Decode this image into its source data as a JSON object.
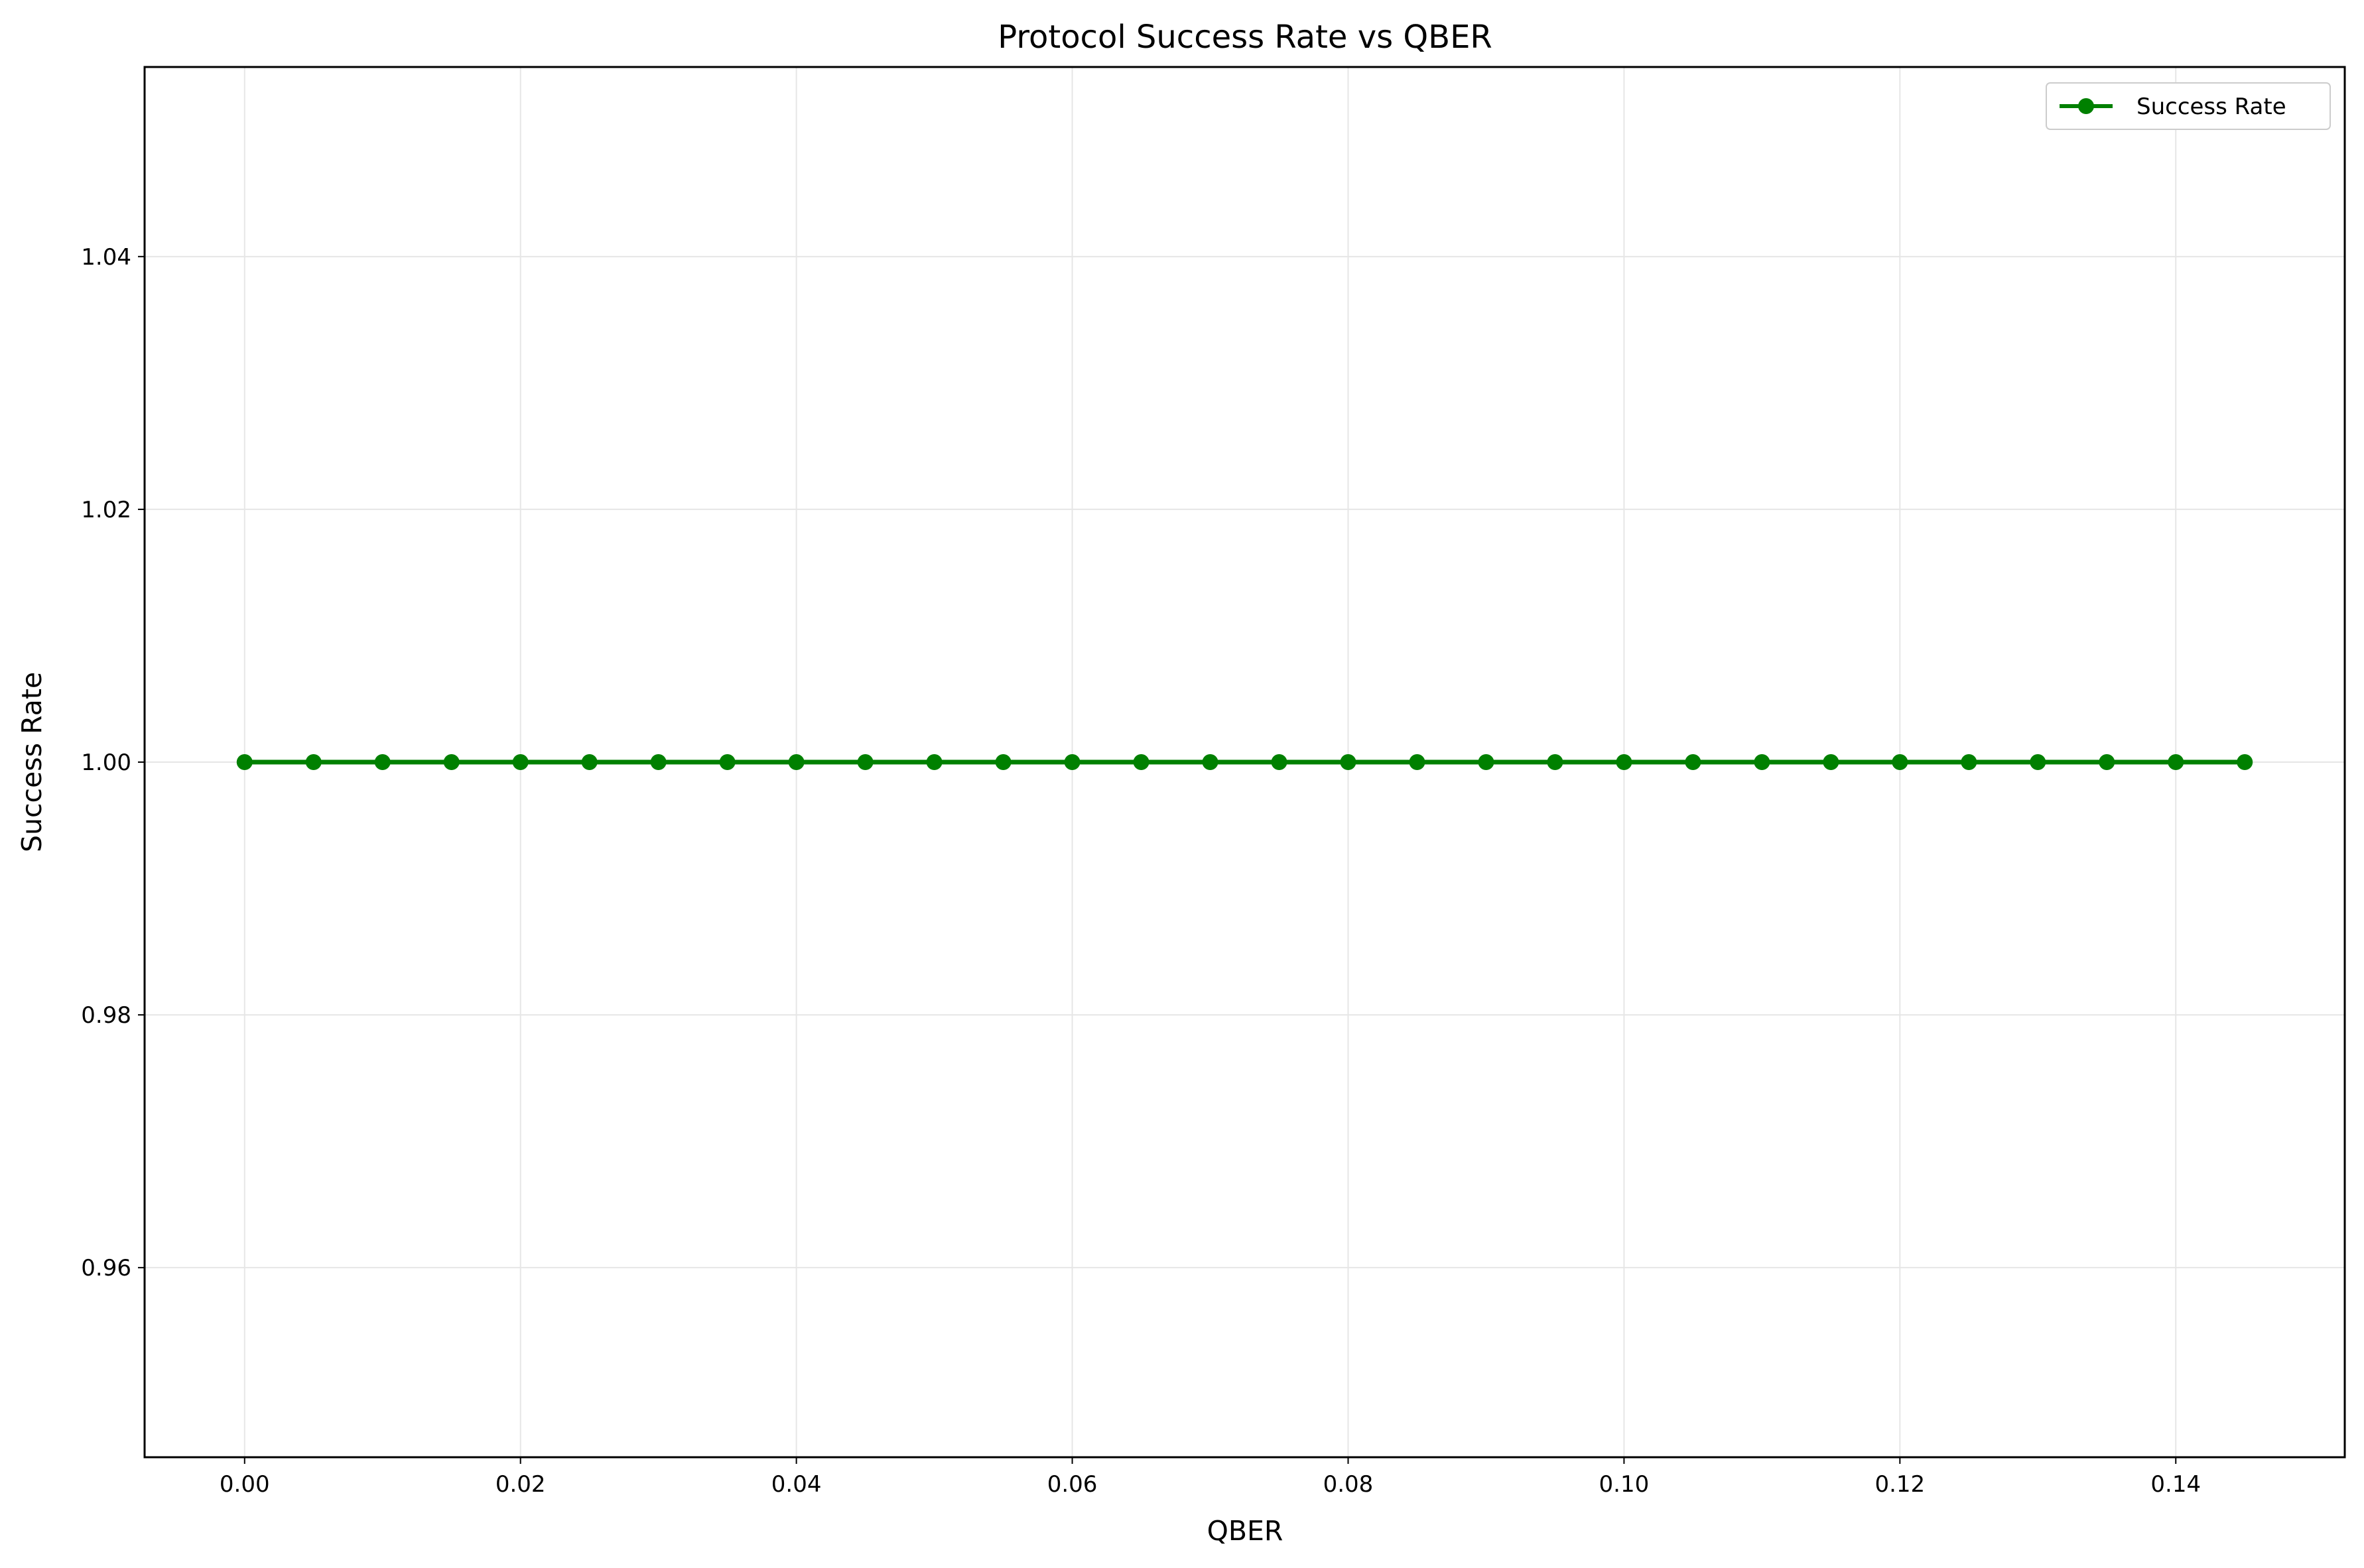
{
  "chart_data": {
    "type": "line",
    "title": "Protocol Success Rate vs QBER",
    "xlabel": "QBER",
    "ylabel": "Success Rate",
    "xlim": [
      -0.00725,
      0.15225
    ],
    "ylim": [
      0.945,
      1.055
    ],
    "x_ticks": [
      "0.00",
      "0.02",
      "0.04",
      "0.06",
      "0.08",
      "0.10",
      "0.12",
      "0.14"
    ],
    "y_ticks": [
      "0.96",
      "0.98",
      "1.00",
      "1.02",
      "1.04"
    ],
    "grid": true,
    "legend_position": "top-right",
    "series": [
      {
        "name": "Success Rate",
        "color": "#008000",
        "marker": "circle",
        "x": [
          0.0,
          0.005,
          0.01,
          0.015,
          0.02,
          0.025,
          0.03,
          0.035,
          0.04,
          0.045,
          0.05,
          0.055,
          0.06,
          0.065,
          0.07,
          0.075,
          0.08,
          0.085,
          0.09,
          0.095,
          0.1,
          0.105,
          0.11,
          0.115,
          0.12,
          0.125,
          0.13,
          0.135,
          0.14,
          0.145
        ],
        "y": [
          1.0,
          1.0,
          1.0,
          1.0,
          1.0,
          1.0,
          1.0,
          1.0,
          1.0,
          1.0,
          1.0,
          1.0,
          1.0,
          1.0,
          1.0,
          1.0,
          1.0,
          1.0,
          1.0,
          1.0,
          1.0,
          1.0,
          1.0,
          1.0,
          1.0,
          1.0,
          1.0,
          1.0,
          1.0,
          1.0
        ]
      }
    ]
  }
}
